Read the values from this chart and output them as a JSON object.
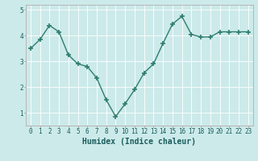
{
  "xlabel": "Humidex (Indice chaleur)",
  "x": [
    0,
    1,
    2,
    3,
    4,
    5,
    6,
    7,
    8,
    9,
    10,
    11,
    12,
    13,
    14,
    15,
    16,
    17,
    18,
    19,
    20,
    21,
    22,
    23
  ],
  "y": [
    3.5,
    3.85,
    4.4,
    4.15,
    3.25,
    2.9,
    2.8,
    2.35,
    1.5,
    0.85,
    1.35,
    1.9,
    2.55,
    2.9,
    3.7,
    4.45,
    4.75,
    4.05,
    3.95,
    3.95,
    4.15,
    4.15,
    4.15,
    4.15
  ],
  "line_color": "#2e7d6e",
  "marker": "+",
  "marker_size": 5,
  "bg_color": "#cceaea",
  "grid_color": "#ffffff",
  "ylim": [
    0.5,
    5.2
  ],
  "xlim": [
    -0.5,
    23.5
  ],
  "yticks": [
    1,
    2,
    3,
    4,
    5
  ],
  "xticks": [
    0,
    1,
    2,
    3,
    4,
    5,
    6,
    7,
    8,
    9,
    10,
    11,
    12,
    13,
    14,
    15,
    16,
    17,
    18,
    19,
    20,
    21,
    22,
    23
  ],
  "tick_fontsize": 5.5,
  "label_fontsize": 7,
  "line_width": 1.0,
  "marker_color": "#2e7d6e"
}
